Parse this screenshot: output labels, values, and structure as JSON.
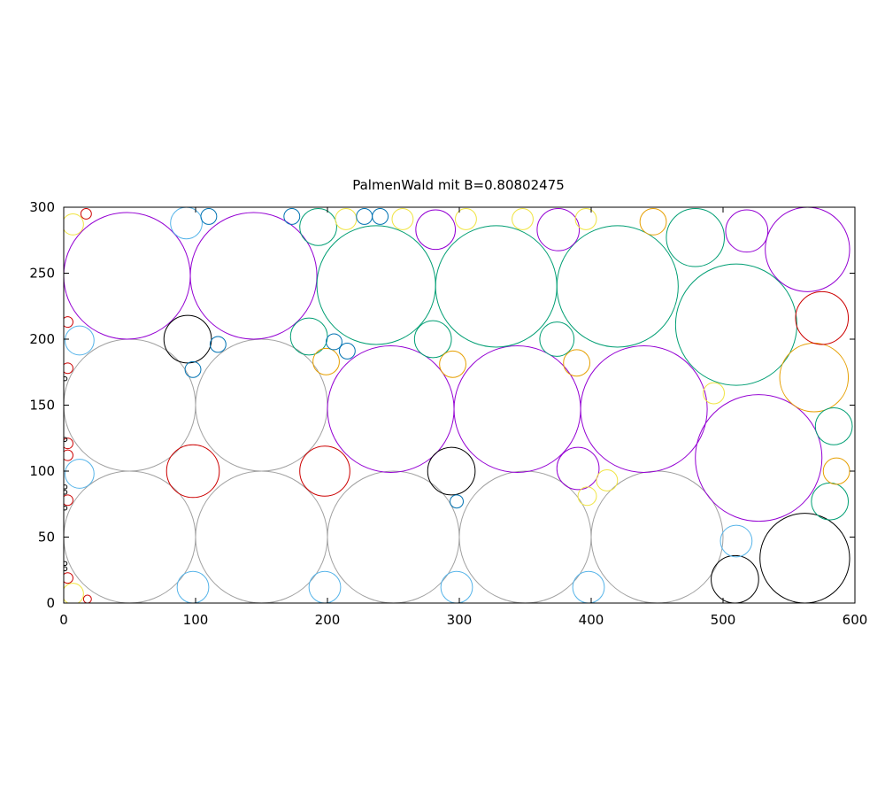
{
  "chart_data": {
    "type": "scatter",
    "title": "PalmenWald mit B=0.80802475",
    "xlabel": "",
    "ylabel": "",
    "xlim": [
      0,
      600
    ],
    "ylim": [
      0,
      300
    ],
    "x_ticks": [
      0,
      100,
      200,
      300,
      400,
      500,
      600
    ],
    "y_ticks": [
      0,
      50,
      100,
      150,
      200,
      250,
      300
    ],
    "grid": false,
    "legend": "none",
    "colors": {
      "gray": "#a0a0a0",
      "purple": "#9400d3",
      "teal": "#009e73",
      "cyan": "#56b4e9",
      "red": "#cc0000",
      "black": "#000000",
      "orange": "#e69f00",
      "yellow": "#f0e442",
      "darkblue": "#0072b2"
    },
    "circles": [
      {
        "x": 50,
        "y": 50,
        "r": 50,
        "color": "gray"
      },
      {
        "x": 150,
        "y": 50,
        "r": 50,
        "color": "gray"
      },
      {
        "x": 250,
        "y": 50,
        "r": 50,
        "color": "gray"
      },
      {
        "x": 350,
        "y": 50,
        "r": 50,
        "color": "gray"
      },
      {
        "x": 450,
        "y": 50,
        "r": 50,
        "color": "gray"
      },
      {
        "x": 50,
        "y": 150,
        "r": 50,
        "color": "gray"
      },
      {
        "x": 150,
        "y": 150,
        "r": 50,
        "color": "gray"
      },
      {
        "x": 248,
        "y": 147,
        "r": 48,
        "color": "purple"
      },
      {
        "x": 344,
        "y": 147,
        "r": 48,
        "color": "purple"
      },
      {
        "x": 440,
        "y": 147,
        "r": 48,
        "color": "purple"
      },
      {
        "x": 527,
        "y": 110,
        "r": 48,
        "color": "purple"
      },
      {
        "x": 48,
        "y": 248,
        "r": 48,
        "color": "purple"
      },
      {
        "x": 144,
        "y": 248,
        "r": 48,
        "color": "purple"
      },
      {
        "x": 237,
        "y": 241,
        "r": 45,
        "color": "teal"
      },
      {
        "x": 328,
        "y": 240,
        "r": 46,
        "color": "teal"
      },
      {
        "x": 420,
        "y": 240,
        "r": 46,
        "color": "teal"
      },
      {
        "x": 510,
        "y": 211,
        "r": 46,
        "color": "teal"
      },
      {
        "x": 562,
        "y": 34,
        "r": 34,
        "color": "black"
      },
      {
        "x": 509,
        "y": 18,
        "r": 18,
        "color": "black"
      },
      {
        "x": 569,
        "y": 171,
        "r": 26,
        "color": "orange"
      },
      {
        "x": 564,
        "y": 268,
        "r": 32,
        "color": "purple"
      },
      {
        "x": 575,
        "y": 216,
        "r": 20,
        "color": "red"
      },
      {
        "x": 479,
        "y": 277,
        "r": 22,
        "color": "teal"
      },
      {
        "x": 518,
        "y": 282,
        "r": 16,
        "color": "purple"
      },
      {
        "x": 375,
        "y": 283,
        "r": 16,
        "color": "purple"
      },
      {
        "x": 282,
        "y": 283,
        "r": 15,
        "color": "purple"
      },
      {
        "x": 390,
        "y": 102,
        "r": 16,
        "color": "purple"
      },
      {
        "x": 98,
        "y": 100,
        "r": 20,
        "color": "red"
      },
      {
        "x": 198,
        "y": 100,
        "r": 19,
        "color": "red"
      },
      {
        "x": 94,
        "y": 200,
        "r": 18,
        "color": "black"
      },
      {
        "x": 294,
        "y": 100,
        "r": 18,
        "color": "black"
      },
      {
        "x": 280,
        "y": 200,
        "r": 14,
        "color": "teal"
      },
      {
        "x": 374,
        "y": 200,
        "r": 13,
        "color": "teal"
      },
      {
        "x": 186,
        "y": 202,
        "r": 14,
        "color": "teal"
      },
      {
        "x": 193,
        "y": 285,
        "r": 14,
        "color": "teal"
      },
      {
        "x": 584,
        "y": 134,
        "r": 14,
        "color": "teal"
      },
      {
        "x": 581,
        "y": 77,
        "r": 14,
        "color": "teal"
      },
      {
        "x": 586,
        "y": 100,
        "r": 10,
        "color": "orange"
      },
      {
        "x": 12,
        "y": 98,
        "r": 11,
        "color": "cyan"
      },
      {
        "x": 12,
        "y": 199,
        "r": 11,
        "color": "cyan"
      },
      {
        "x": 93,
        "y": 288,
        "r": 12,
        "color": "cyan"
      },
      {
        "x": 98,
        "y": 12,
        "r": 12,
        "color": "cyan"
      },
      {
        "x": 198,
        "y": 12,
        "r": 12,
        "color": "cyan"
      },
      {
        "x": 298,
        "y": 12,
        "r": 12,
        "color": "cyan"
      },
      {
        "x": 398,
        "y": 12,
        "r": 12,
        "color": "cyan"
      },
      {
        "x": 510,
        "y": 47,
        "r": 12,
        "color": "cyan"
      },
      {
        "x": 199,
        "y": 183,
        "r": 10,
        "color": "orange"
      },
      {
        "x": 295,
        "y": 181,
        "r": 10,
        "color": "orange"
      },
      {
        "x": 389,
        "y": 182,
        "r": 10,
        "color": "orange"
      },
      {
        "x": 447,
        "y": 289,
        "r": 10,
        "color": "orange"
      },
      {
        "x": 7,
        "y": 287,
        "r": 8,
        "color": "yellow"
      },
      {
        "x": 214,
        "y": 291,
        "r": 8,
        "color": "yellow"
      },
      {
        "x": 257,
        "y": 291,
        "r": 8,
        "color": "yellow"
      },
      {
        "x": 305,
        "y": 291,
        "r": 8,
        "color": "yellow"
      },
      {
        "x": 348,
        "y": 291,
        "r": 8,
        "color": "yellow"
      },
      {
        "x": 396,
        "y": 291,
        "r": 8,
        "color": "yellow"
      },
      {
        "x": 493,
        "y": 159,
        "r": 8,
        "color": "yellow"
      },
      {
        "x": 412,
        "y": 93,
        "r": 8,
        "color": "yellow"
      },
      {
        "x": 397,
        "y": 81,
        "r": 7,
        "color": "yellow"
      },
      {
        "x": 7,
        "y": 7,
        "r": 8,
        "color": "yellow"
      },
      {
        "x": 110,
        "y": 293,
        "r": 6,
        "color": "darkblue"
      },
      {
        "x": 173,
        "y": 293,
        "r": 6,
        "color": "darkblue"
      },
      {
        "x": 228,
        "y": 293,
        "r": 6,
        "color": "darkblue"
      },
      {
        "x": 240,
        "y": 293,
        "r": 6,
        "color": "darkblue"
      },
      {
        "x": 117,
        "y": 196,
        "r": 6,
        "color": "darkblue"
      },
      {
        "x": 205,
        "y": 198,
        "r": 6,
        "color": "darkblue"
      },
      {
        "x": 215,
        "y": 191,
        "r": 6,
        "color": "darkblue"
      },
      {
        "x": 98,
        "y": 177,
        "r": 6,
        "color": "darkblue"
      },
      {
        "x": 298,
        "y": 77,
        "r": 5,
        "color": "darkblue"
      },
      {
        "x": 17,
        "y": 295,
        "r": 4,
        "color": "red"
      },
      {
        "x": 3,
        "y": 213,
        "r": 4,
        "color": "red"
      },
      {
        "x": 3,
        "y": 178,
        "r": 4,
        "color": "red"
      },
      {
        "x": 3,
        "y": 121,
        "r": 4,
        "color": "red"
      },
      {
        "x": 3,
        "y": 112,
        "r": 4,
        "color": "red"
      },
      {
        "x": 3,
        "y": 78,
        "r": 4,
        "color": "red"
      },
      {
        "x": 3,
        "y": 19,
        "r": 4,
        "color": "red"
      },
      {
        "x": 18,
        "y": 3,
        "r": 3,
        "color": "red"
      },
      {
        "x": 1,
        "y": 170,
        "r": 1.5,
        "color": "black"
      },
      {
        "x": 1,
        "y": 124,
        "r": 1.5,
        "color": "black"
      },
      {
        "x": 1,
        "y": 88,
        "r": 1.5,
        "color": "black"
      },
      {
        "x": 1,
        "y": 84,
        "r": 1.5,
        "color": "black"
      },
      {
        "x": 1,
        "y": 72,
        "r": 1.5,
        "color": "black"
      },
      {
        "x": 1,
        "y": 30,
        "r": 1.5,
        "color": "black"
      },
      {
        "x": 1,
        "y": 26,
        "r": 1.5,
        "color": "black"
      }
    ]
  }
}
